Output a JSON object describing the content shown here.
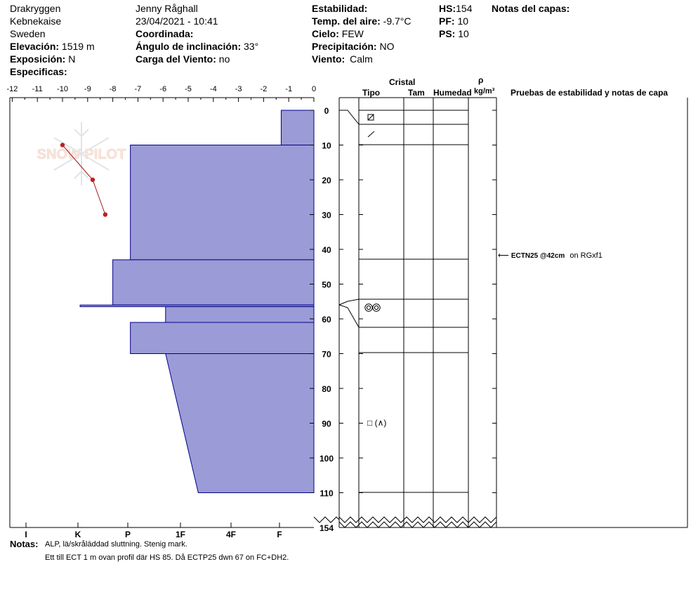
{
  "header": {
    "location": "Drakryggen",
    "area": "Kebnekaise",
    "country": "Sweden",
    "elevation_label": "Elevación:",
    "elevation": "1519 m",
    "aspect_label": "Exposición:",
    "aspect": "N",
    "specifics_label": "Especificas:",
    "observer": "Jenny Råghall",
    "datetime": "23/04/2021 - 10:41",
    "coords_label": "Coordinada:",
    "slope_label": "Ángulo de inclinación:",
    "slope": "33°",
    "windload_label": "Carga del Viento:",
    "windload": "no",
    "stability_label": "Estabilidad:",
    "airtemp_label": "Temp. del aire:",
    "airtemp": "-9.7°C",
    "sky_label": "Cielo:",
    "sky": "FEW",
    "precip_label": "Precipitación:",
    "precip": "NO",
    "wind_label": "Viento:",
    "wind": "Calm",
    "hs_label": "HS:",
    "hs": "154",
    "pf_label": "PF:",
    "pf": "10",
    "ps_label": "PS:",
    "ps": "10",
    "layer_notes_label": "Notas del capas:"
  },
  "columns": {
    "cristal": "Cristal",
    "tipo": "Tipo",
    "tam": "Tam",
    "humedad": "Humedad",
    "rho": "ρ",
    "density_unit": "kg/m³",
    "tests": "Pruebas de estabilidad y notas de capa"
  },
  "test_annotation": {
    "code": "ECTN25 @42cm",
    "on": "on RGxf1"
  },
  "notes": {
    "label": "Notas:",
    "line1": "ALP, lä/skrålāddad sluttning. Stenig mark.",
    "line2": "Ett till ECT 1 m ovan profil där HS 85. Då ECTP25 dwn 67 on FC+DH2."
  },
  "watermark": "SNOW PILOT",
  "chart_data": {
    "type": "snow-profile",
    "temp_axis": {
      "label": "",
      "range": [
        -12,
        0
      ],
      "ticks": [
        -12,
        -11,
        -10,
        -9,
        -8,
        -7,
        -6,
        -5,
        -4,
        -3,
        -2,
        -1,
        0
      ]
    },
    "hardness_axis": {
      "ticks": [
        "I",
        "K",
        "P",
        "1F",
        "4F",
        "F"
      ]
    },
    "depth_axis": {
      "range": [
        0,
        154
      ],
      "ticks": [
        0,
        10,
        20,
        30,
        40,
        50,
        60,
        70,
        80,
        90,
        100,
        110,
        154
      ],
      "break_between": [
        110,
        154
      ]
    },
    "temperature_profile": [
      {
        "temp": -10.0,
        "depth": 10
      },
      {
        "temp": -8.8,
        "depth": 20
      },
      {
        "temp": -8.3,
        "depth": 30
      }
    ],
    "hardness_profile": [
      {
        "depth_top": 0,
        "depth_bottom": 10,
        "hardness": "F",
        "bar_top_temp": -1.3,
        "bar_bottom_temp": -1.3
      },
      {
        "depth_top": 10,
        "depth_bottom": 43,
        "hardness": "P",
        "bar_top_temp": -7.3,
        "bar_bottom_temp": -7.3
      },
      {
        "depth_top": 43,
        "depth_bottom": 56,
        "hardness": "P+",
        "bar_top_temp": -8.0,
        "bar_bottom_temp": -8.0
      },
      {
        "depth_top": 56,
        "depth_bottom": 56.5,
        "hardness": "K",
        "bar_top_temp": -9.3,
        "bar_bottom_temp": -9.3
      },
      {
        "depth_top": 56.5,
        "depth_bottom": 61,
        "hardness": "1F",
        "bar_top_temp": -5.9,
        "bar_bottom_temp": -5.9
      },
      {
        "depth_top": 61,
        "depth_bottom": 70,
        "hardness": "P",
        "bar_top_temp": -7.3,
        "bar_bottom_temp": -7.3
      },
      {
        "depth_top": 70,
        "depth_bottom": 110,
        "hardness": "1F-4F",
        "bar_top_temp": -5.9,
        "bar_bottom_temp": -4.6
      }
    ],
    "layers": [
      {
        "depth_top": 0,
        "depth_bottom": 4,
        "grain": "decomposing-fragments"
      },
      {
        "depth_top": 4,
        "depth_bottom": 10,
        "grain": "precipitation-particles"
      },
      {
        "depth_top": 10,
        "depth_bottom": 43,
        "grain": ""
      },
      {
        "depth_top": 43,
        "depth_bottom": 55,
        "grain": ""
      },
      {
        "depth_top": 55,
        "depth_bottom": 62,
        "grain": "melt-forms"
      },
      {
        "depth_top": 62,
        "depth_bottom": 70,
        "grain": ""
      },
      {
        "depth_top": 70,
        "depth_bottom": 110,
        "grain": "faceted-and-depth-hoar",
        "grain_text": "□ (∧)"
      }
    ]
  }
}
